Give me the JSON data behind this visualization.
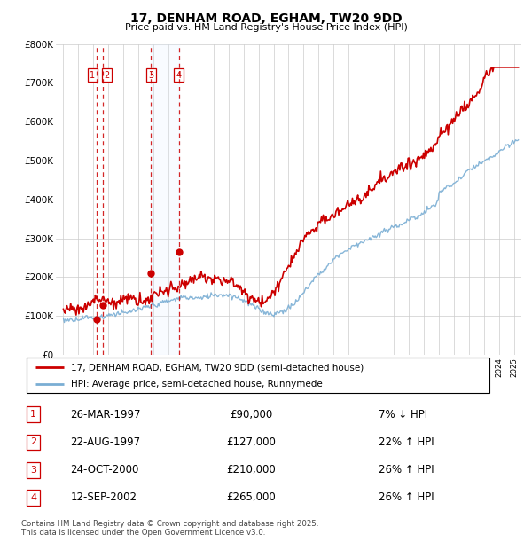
{
  "title": "17, DENHAM ROAD, EGHAM, TW20 9DD",
  "subtitle": "Price paid vs. HM Land Registry's House Price Index (HPI)",
  "ylim": [
    0,
    800000
  ],
  "yticks": [
    0,
    100000,
    200000,
    300000,
    400000,
    500000,
    600000,
    700000,
    800000
  ],
  "ytick_labels": [
    "£0",
    "£100K",
    "£200K",
    "£300K",
    "£400K",
    "£500K",
    "£600K",
    "£700K",
    "£800K"
  ],
  "xlim": [
    1994.5,
    2025.5
  ],
  "background_color": "#ffffff",
  "grid_color": "#cccccc",
  "transactions": [
    {
      "num": 1,
      "date": "26-MAR-1997",
      "price": 90000,
      "pct": "7%",
      "dir": "↓",
      "year": 1997.23
    },
    {
      "num": 2,
      "date": "22-AUG-1997",
      "price": 127000,
      "pct": "22%",
      "dir": "↑",
      "year": 1997.64
    },
    {
      "num": 3,
      "date": "24-OCT-2000",
      "price": 210000,
      "pct": "26%",
      "dir": "↑",
      "year": 2000.82
    },
    {
      "num": 4,
      "date": "12-SEP-2002",
      "price": 265000,
      "pct": "26%",
      "dir": "↑",
      "year": 2002.7
    }
  ],
  "legend_line1": "17, DENHAM ROAD, EGHAM, TW20 9DD (semi-detached house)",
  "legend_line2": "HPI: Average price, semi-detached house, Runnymede",
  "footer": "Contains HM Land Registry data © Crown copyright and database right 2025.\nThis data is licensed under the Open Government Licence v3.0.",
  "red_color": "#cc0000",
  "blue_color": "#7aaed4",
  "shade_color": "#ddeeff",
  "num_points": 500
}
